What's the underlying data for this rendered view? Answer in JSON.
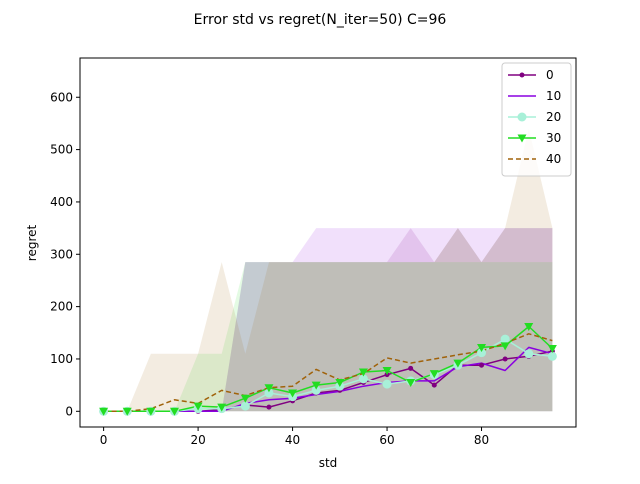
{
  "chart_data": {
    "type": "line",
    "title": "Error std vs regret(N_iter=50) C=96",
    "xlabel": "std",
    "ylabel": "regret",
    "xlim": [
      -5,
      100
    ],
    "ylim": [
      -30,
      675
    ],
    "xticks": [
      0,
      20,
      40,
      60,
      80
    ],
    "yticks": [
      0,
      100,
      200,
      300,
      400,
      500,
      600
    ],
    "legend_position": "top-right",
    "x": [
      0,
      5,
      10,
      15,
      20,
      25,
      30,
      35,
      40,
      45,
      50,
      55,
      60,
      65,
      70,
      75,
      80,
      85,
      90,
      95
    ],
    "series": [
      {
        "name": "0",
        "color": "#800080",
        "style": "solid-dot-marker",
        "values": [
          0,
          0,
          0,
          0,
          0,
          3,
          12,
          8,
          20,
          35,
          40,
          55,
          70,
          82,
          50,
          88,
          88,
          100,
          105,
          115
        ],
        "band_upper": [
          0,
          0,
          0,
          0,
          0,
          0,
          285,
          285,
          285,
          285,
          285,
          285,
          285,
          350,
          285,
          350,
          285,
          350,
          350,
          350
        ],
        "band_lower": [
          0,
          0,
          0,
          0,
          0,
          0,
          0,
          0,
          0,
          0,
          0,
          0,
          0,
          0,
          0,
          0,
          0,
          0,
          0,
          0
        ]
      },
      {
        "name": "10",
        "color": "#8a00e0",
        "style": "solid",
        "values": [
          0,
          0,
          0,
          0,
          0,
          0,
          15,
          22,
          25,
          32,
          38,
          48,
          55,
          58,
          58,
          85,
          92,
          78,
          122,
          110
        ],
        "band_upper": [
          0,
          0,
          0,
          0,
          0,
          0,
          285,
          285,
          285,
          350,
          350,
          350,
          350,
          350,
          350,
          350,
          350,
          350,
          350,
          350
        ],
        "band_lower": [
          0,
          0,
          0,
          0,
          0,
          0,
          0,
          0,
          0,
          0,
          0,
          0,
          0,
          0,
          0,
          0,
          0,
          0,
          0,
          0
        ]
      },
      {
        "name": "20",
        "color": "#a8f0d8",
        "style": "solid-circle-marker",
        "values": [
          0,
          0,
          0,
          0,
          5,
          5,
          10,
          35,
          28,
          40,
          48,
          62,
          52,
          58,
          70,
          88,
          112,
          138,
          110,
          105
        ],
        "band_upper": [
          0,
          0,
          0,
          0,
          0,
          0,
          285,
          285,
          285,
          285,
          285,
          285,
          285,
          285,
          285,
          350,
          285,
          350,
          350,
          350
        ],
        "band_lower": [
          0,
          0,
          0,
          0,
          0,
          0,
          0,
          0,
          0,
          0,
          0,
          0,
          0,
          0,
          0,
          0,
          0,
          0,
          0,
          0
        ]
      },
      {
        "name": "30",
        "color": "#22dd22",
        "style": "solid-triangle-marker",
        "values": [
          0,
          0,
          0,
          0,
          10,
          8,
          25,
          45,
          35,
          50,
          55,
          75,
          78,
          55,
          72,
          92,
          122,
          125,
          162,
          120
        ],
        "band_upper": [
          0,
          0,
          0,
          0,
          110,
          110,
          285,
          285,
          285,
          285,
          285,
          285,
          285,
          285,
          285,
          285,
          285,
          285,
          285,
          285
        ],
        "band_lower": [
          0,
          0,
          0,
          0,
          0,
          0,
          0,
          0,
          0,
          0,
          0,
          0,
          0,
          0,
          0,
          0,
          0,
          0,
          0,
          0
        ]
      },
      {
        "name": "40",
        "color": "#a0620a",
        "style": "dashed",
        "values": [
          0,
          0,
          5,
          22,
          15,
          40,
          30,
          45,
          48,
          80,
          60,
          72,
          102,
          92,
          100,
          108,
          115,
          130,
          148,
          135
        ],
        "band_upper": [
          0,
          0,
          110,
          110,
          110,
          285,
          110,
          285,
          285,
          285,
          285,
          285,
          285,
          285,
          285,
          350,
          285,
          350,
          540,
          350
        ],
        "band_lower": [
          0,
          0,
          0,
          0,
          0,
          0,
          0,
          0,
          0,
          0,
          0,
          0,
          0,
          0,
          0,
          0,
          0,
          0,
          0,
          0
        ]
      }
    ]
  }
}
